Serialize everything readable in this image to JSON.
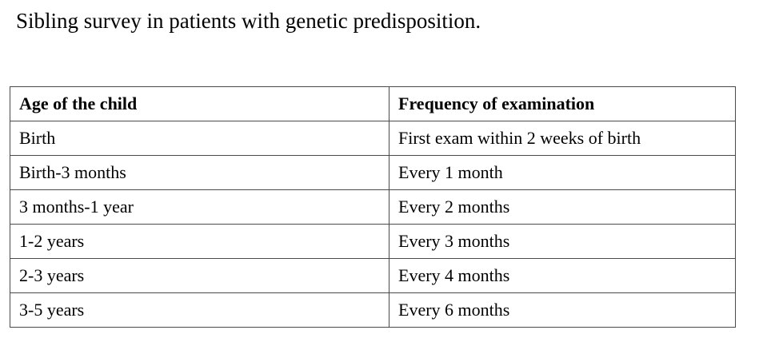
{
  "title": "Sibling survey in patients with genetic predisposition.",
  "table": {
    "headers": [
      "Age of the child",
      "Frequency of examination"
    ],
    "rows": [
      [
        "Birth",
        "First exam within 2 weeks of birth"
      ],
      [
        "Birth-3 months",
        "Every 1 month"
      ],
      [
        "3 months-1 year",
        "Every 2 months"
      ],
      [
        "1-2 years",
        "Every 3 months"
      ],
      [
        "2-3 years",
        "Every 4 months"
      ],
      [
        "3-5 years",
        "Every 6 months"
      ]
    ]
  }
}
